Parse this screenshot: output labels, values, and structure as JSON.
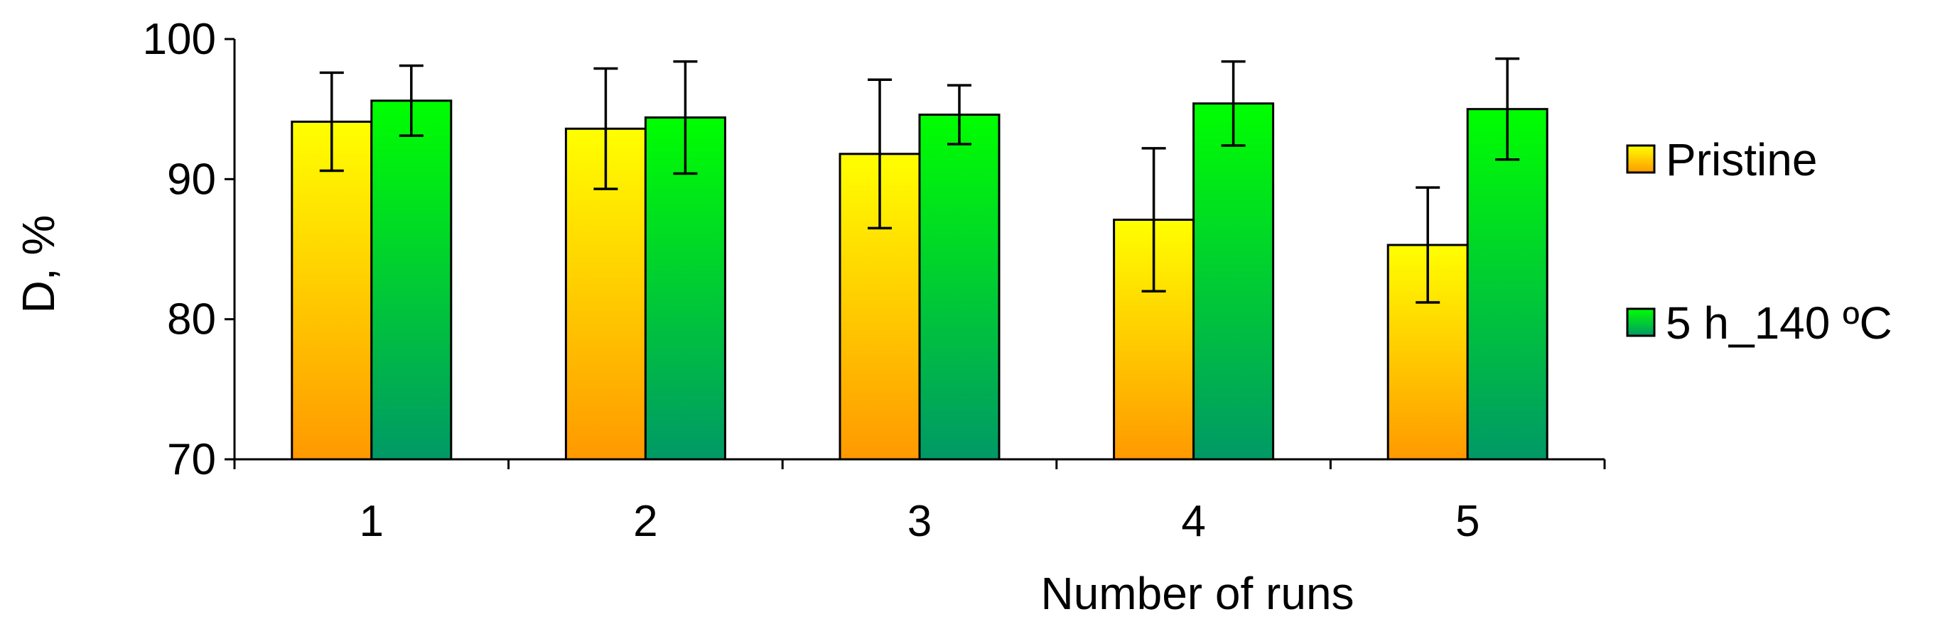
{
  "chart_data": {
    "type": "bar",
    "title": "",
    "xlabel": "Number of runs",
    "ylabel": "D, %",
    "ylim": [
      70,
      100
    ],
    "yticks": [
      70,
      80,
      90,
      100
    ],
    "categories": [
      "1",
      "2",
      "3",
      "4",
      "5"
    ],
    "grid": false,
    "legend_position": "right",
    "series": [
      {
        "name": "Pristine",
        "color_top": "#ffff00",
        "color_bottom": "#ff9900",
        "values": [
          94.1,
          93.6,
          91.8,
          87.1,
          85.3
        ],
        "errors": [
          3.5,
          4.3,
          5.3,
          5.1,
          4.1
        ]
      },
      {
        "name": "5 h_140 ºC",
        "color_top": "#00ff00",
        "color_bottom": "#009966",
        "values": [
          95.6,
          94.4,
          94.6,
          95.4,
          95.0
        ],
        "errors": [
          2.5,
          4.0,
          2.1,
          3.0,
          3.6
        ]
      }
    ]
  }
}
